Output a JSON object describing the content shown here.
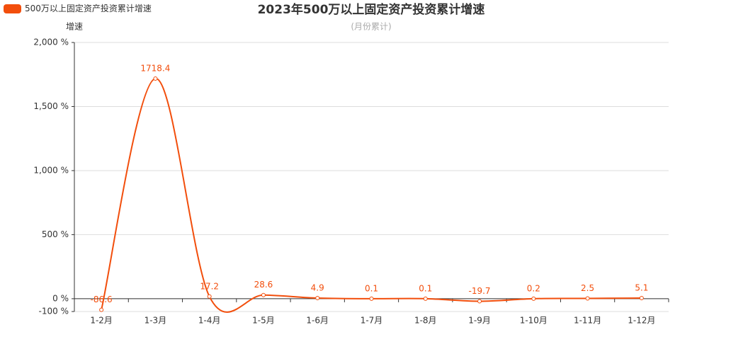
{
  "chart_data": {
    "type": "line",
    "title": "2023年500万以上固定资产投资累计增速",
    "subtitle": "(月份累计)",
    "y_axis_label": "增速",
    "categories": [
      "1-2月",
      "1-3月",
      "1-4月",
      "1-5月",
      "1-6月",
      "1-7月",
      "1-8月",
      "1-9月",
      "1-10月",
      "1-11月",
      "1-12月"
    ],
    "series": [
      {
        "name": "500万以上固定资产投资累计增速",
        "color": "#f24e0c",
        "values": [
          -86.6,
          1718.4,
          17.2,
          28.6,
          4.9,
          0.1,
          0.1,
          -19.7,
          0.2,
          2.5,
          5.1
        ]
      }
    ],
    "smooth": true,
    "ylim": [
      -100,
      2000
    ],
    "yticks": [
      {
        "value": -100,
        "label": "-100 %"
      },
      {
        "value": 0,
        "label": "0 %"
      },
      {
        "value": 500,
        "label": "500 %"
      },
      {
        "value": 1000,
        "label": "1,000 %"
      },
      {
        "value": 1500,
        "label": "1,500 %"
      },
      {
        "value": 2000,
        "label": "2,000 %"
      }
    ],
    "grid": true
  }
}
